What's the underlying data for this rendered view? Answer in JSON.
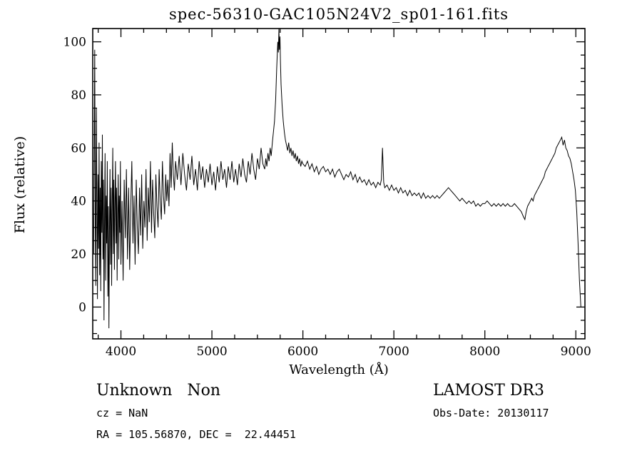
{
  "title": "spec-56310-GAC105N24V2_sp01-161.fits",
  "annotations": {
    "class_label": "Unknown   Non",
    "survey": "LAMOST DR3",
    "cz": "cz = NaN",
    "obs_date": "Obs-Date: 20130117",
    "radec": "RA = 105.56870, DEC =  22.44451"
  },
  "chart_data": {
    "type": "line",
    "title": "spec-56310-GAC105N24V2_sp01-161.fits",
    "xlabel": "Wavelength (Å)",
    "ylabel": "Flux (relative)",
    "xlim": [
      3690,
      9100
    ],
    "ylim": [
      -12,
      105
    ],
    "xticks": [
      4000,
      5000,
      6000,
      7000,
      8000,
      9000
    ],
    "yticks": [
      0,
      20,
      40,
      60,
      80,
      100
    ],
    "x_minor_step": 250,
    "y_minor_step": 5,
    "grid": false,
    "legend": "none",
    "line_color": "#000000",
    "frame_color": "#000000",
    "points": [
      [
        3700,
        20
      ],
      [
        3706,
        55
      ],
      [
        3712,
        97
      ],
      [
        3718,
        30
      ],
      [
        3724,
        8
      ],
      [
        3730,
        75
      ],
      [
        3736,
        40
      ],
      [
        3742,
        3
      ],
      [
        3748,
        50
      ],
      [
        3754,
        22
      ],
      [
        3760,
        62
      ],
      [
        3766,
        12
      ],
      [
        3772,
        45
      ],
      [
        3778,
        6
      ],
      [
        3784,
        55
      ],
      [
        3790,
        28
      ],
      [
        3796,
        65
      ],
      [
        3802,
        18
      ],
      [
        3808,
        48
      ],
      [
        3814,
        -5
      ],
      [
        3820,
        35
      ],
      [
        3826,
        58
      ],
      [
        3832,
        10
      ],
      [
        3838,
        42
      ],
      [
        3844,
        24
      ],
      [
        3850,
        55
      ],
      [
        3856,
        4
      ],
      [
        3862,
        38
      ],
      [
        3868,
        -8
      ],
      [
        3874,
        30
      ],
      [
        3880,
        52
      ],
      [
        3886,
        16
      ],
      [
        3892,
        45
      ],
      [
        3898,
        8
      ],
      [
        3904,
        40
      ],
      [
        3910,
        60
      ],
      [
        3916,
        20
      ],
      [
        3922,
        48
      ],
      [
        3928,
        14
      ],
      [
        3934,
        38
      ],
      [
        3940,
        55
      ],
      [
        3946,
        24
      ],
      [
        3952,
        45
      ],
      [
        3958,
        10
      ],
      [
        3964,
        35
      ],
      [
        3970,
        50
      ],
      [
        3976,
        18
      ],
      [
        3982,
        42
      ],
      [
        3988,
        28
      ],
      [
        3994,
        55
      ],
      [
        4000,
        16
      ],
      [
        4012,
        40
      ],
      [
        4024,
        10
      ],
      [
        4036,
        48
      ],
      [
        4048,
        26
      ],
      [
        4060,
        52
      ],
      [
        4072,
        18
      ],
      [
        4084,
        45
      ],
      [
        4096,
        14
      ],
      [
        4108,
        38
      ],
      [
        4120,
        55
      ],
      [
        4132,
        24
      ],
      [
        4144,
        42
      ],
      [
        4156,
        16
      ],
      [
        4168,
        48
      ],
      [
        4180,
        30
      ],
      [
        4192,
        20
      ],
      [
        4204,
        45
      ],
      [
        4216,
        27
      ],
      [
        4228,
        50
      ],
      [
        4240,
        22
      ],
      [
        4252,
        40
      ],
      [
        4264,
        30
      ],
      [
        4276,
        52
      ],
      [
        4288,
        25
      ],
      [
        4300,
        45
      ],
      [
        4312,
        32
      ],
      [
        4324,
        55
      ],
      [
        4336,
        28
      ],
      [
        4348,
        48
      ],
      [
        4360,
        35
      ],
      [
        4372,
        26
      ],
      [
        4384,
        50
      ],
      [
        4396,
        38
      ],
      [
        4408,
        30
      ],
      [
        4420,
        52
      ],
      [
        4432,
        40
      ],
      [
        4444,
        33
      ],
      [
        4456,
        55
      ],
      [
        4468,
        42
      ],
      [
        4480,
        35
      ],
      [
        4492,
        50
      ],
      [
        4504,
        40
      ],
      [
        4516,
        48
      ],
      [
        4528,
        38
      ],
      [
        4540,
        58
      ],
      [
        4552,
        45
      ],
      [
        4564,
        62
      ],
      [
        4576,
        50
      ],
      [
        4588,
        44
      ],
      [
        4600,
        55
      ],
      [
        4620,
        48
      ],
      [
        4640,
        57
      ],
      [
        4660,
        46
      ],
      [
        4680,
        58
      ],
      [
        4700,
        50
      ],
      [
        4720,
        44
      ],
      [
        4740,
        54
      ],
      [
        4760,
        48
      ],
      [
        4780,
        57
      ],
      [
        4800,
        46
      ],
      [
        4820,
        52
      ],
      [
        4840,
        44
      ],
      [
        4860,
        55
      ],
      [
        4880,
        48
      ],
      [
        4900,
        53
      ],
      [
        4920,
        45
      ],
      [
        4940,
        52
      ],
      [
        4960,
        47
      ],
      [
        4980,
        54
      ],
      [
        5000,
        46
      ],
      [
        5020,
        51
      ],
      [
        5040,
        44
      ],
      [
        5060,
        53
      ],
      [
        5080,
        47
      ],
      [
        5100,
        55
      ],
      [
        5120,
        48
      ],
      [
        5140,
        52
      ],
      [
        5160,
        45
      ],
      [
        5180,
        53
      ],
      [
        5200,
        48
      ],
      [
        5220,
        55
      ],
      [
        5240,
        47
      ],
      [
        5260,
        52
      ],
      [
        5280,
        46
      ],
      [
        5300,
        54
      ],
      [
        5320,
        49
      ],
      [
        5340,
        56
      ],
      [
        5360,
        50
      ],
      [
        5380,
        47
      ],
      [
        5400,
        55
      ],
      [
        5420,
        50
      ],
      [
        5440,
        58
      ],
      [
        5460,
        52
      ],
      [
        5480,
        48
      ],
      [
        5500,
        56
      ],
      [
        5520,
        52
      ],
      [
        5540,
        60
      ],
      [
        5560,
        54
      ],
      [
        5580,
        52
      ],
      [
        5592,
        56
      ],
      [
        5604,
        53
      ],
      [
        5616,
        58
      ],
      [
        5628,
        55
      ],
      [
        5640,
        60
      ],
      [
        5652,
        57
      ],
      [
        5664,
        62
      ],
      [
        5676,
        66
      ],
      [
        5688,
        70
      ],
      [
        5700,
        78
      ],
      [
        5712,
        90
      ],
      [
        5724,
        100
      ],
      [
        5730,
        96
      ],
      [
        5736,
        105
      ],
      [
        5742,
        97
      ],
      [
        5748,
        102
      ],
      [
        5754,
        92
      ],
      [
        5760,
        84
      ],
      [
        5772,
        76
      ],
      [
        5784,
        70
      ],
      [
        5796,
        66
      ],
      [
        5808,
        63
      ],
      [
        5820,
        61
      ],
      [
        5832,
        59
      ],
      [
        5844,
        62
      ],
      [
        5856,
        58
      ],
      [
        5868,
        60
      ],
      [
        5880,
        57
      ],
      [
        5892,
        59
      ],
      [
        5904,
        56
      ],
      [
        5916,
        58
      ],
      [
        5928,
        55
      ],
      [
        5940,
        57
      ],
      [
        5952,
        54
      ],
      [
        5964,
        56
      ],
      [
        5976,
        53
      ],
      [
        5988,
        55
      ],
      [
        6000,
        54
      ],
      [
        6025,
        53
      ],
      [
        6050,
        55
      ],
      [
        6075,
        52
      ],
      [
        6100,
        54
      ],
      [
        6125,
        51
      ],
      [
        6150,
        53
      ],
      [
        6175,
        50
      ],
      [
        6200,
        52
      ],
      [
        6225,
        53
      ],
      [
        6250,
        51
      ],
      [
        6275,
        52
      ],
      [
        6300,
        50
      ],
      [
        6325,
        52
      ],
      [
        6350,
        49
      ],
      [
        6375,
        51
      ],
      [
        6400,
        52
      ],
      [
        6425,
        50
      ],
      [
        6450,
        48
      ],
      [
        6475,
        50
      ],
      [
        6500,
        49
      ],
      [
        6525,
        51
      ],
      [
        6550,
        48
      ],
      [
        6575,
        50
      ],
      [
        6600,
        47
      ],
      [
        6625,
        49
      ],
      [
        6650,
        47
      ],
      [
        6675,
        48
      ],
      [
        6700,
        46
      ],
      [
        6725,
        48
      ],
      [
        6750,
        46
      ],
      [
        6775,
        47
      ],
      [
        6800,
        45
      ],
      [
        6825,
        47
      ],
      [
        6850,
        46
      ],
      [
        6862,
        48
      ],
      [
        6875,
        60
      ],
      [
        6888,
        47
      ],
      [
        6900,
        45
      ],
      [
        6925,
        46
      ],
      [
        6950,
        44
      ],
      [
        6975,
        46
      ],
      [
        7000,
        44
      ],
      [
        7025,
        45
      ],
      [
        7050,
        43
      ],
      [
        7075,
        45
      ],
      [
        7100,
        43
      ],
      [
        7125,
        44
      ],
      [
        7150,
        42
      ],
      [
        7175,
        44
      ],
      [
        7200,
        42
      ],
      [
        7225,
        43
      ],
      [
        7250,
        42
      ],
      [
        7275,
        43
      ],
      [
        7300,
        41
      ],
      [
        7325,
        43
      ],
      [
        7350,
        41
      ],
      [
        7375,
        42
      ],
      [
        7400,
        41
      ],
      [
        7425,
        42
      ],
      [
        7450,
        41
      ],
      [
        7475,
        42
      ],
      [
        7500,
        41
      ],
      [
        7525,
        42
      ],
      [
        7550,
        43
      ],
      [
        7575,
        44
      ],
      [
        7600,
        45
      ],
      [
        7625,
        44
      ],
      [
        7650,
        43
      ],
      [
        7675,
        42
      ],
      [
        7700,
        41
      ],
      [
        7725,
        40
      ],
      [
        7750,
        41
      ],
      [
        7775,
        40
      ],
      [
        7800,
        39
      ],
      [
        7825,
        40
      ],
      [
        7850,
        39
      ],
      [
        7875,
        40
      ],
      [
        7900,
        38
      ],
      [
        7925,
        39
      ],
      [
        7950,
        38
      ],
      [
        7975,
        39
      ],
      [
        8000,
        39
      ],
      [
        8025,
        40
      ],
      [
        8050,
        39
      ],
      [
        8075,
        38
      ],
      [
        8100,
        39
      ],
      [
        8125,
        38
      ],
      [
        8150,
        39
      ],
      [
        8175,
        38
      ],
      [
        8200,
        39
      ],
      [
        8225,
        38
      ],
      [
        8250,
        39
      ],
      [
        8275,
        38
      ],
      [
        8300,
        38
      ],
      [
        8325,
        39
      ],
      [
        8350,
        38
      ],
      [
        8375,
        37
      ],
      [
        8400,
        36
      ],
      [
        8425,
        34
      ],
      [
        8440,
        33
      ],
      [
        8455,
        36
      ],
      [
        8470,
        38
      ],
      [
        8485,
        39
      ],
      [
        8500,
        40
      ],
      [
        8515,
        41
      ],
      [
        8530,
        40
      ],
      [
        8545,
        42
      ],
      [
        8560,
        43
      ],
      [
        8575,
        44
      ],
      [
        8590,
        45
      ],
      [
        8605,
        46
      ],
      [
        8620,
        47
      ],
      [
        8635,
        48
      ],
      [
        8650,
        49
      ],
      [
        8665,
        51
      ],
      [
        8680,
        52
      ],
      [
        8695,
        53
      ],
      [
        8710,
        54
      ],
      [
        8725,
        55
      ],
      [
        8740,
        56
      ],
      [
        8755,
        57
      ],
      [
        8770,
        58
      ],
      [
        8785,
        60
      ],
      [
        8800,
        61
      ],
      [
        8815,
        62
      ],
      [
        8830,
        63
      ],
      [
        8845,
        64
      ],
      [
        8860,
        61
      ],
      [
        8875,
        63
      ],
      [
        8890,
        60
      ],
      [
        8905,
        59
      ],
      [
        8920,
        57
      ],
      [
        8935,
        56
      ],
      [
        8950,
        54
      ],
      [
        8965,
        51
      ],
      [
        8980,
        48
      ],
      [
        8995,
        44
      ],
      [
        9010,
        36
      ],
      [
        9025,
        24
      ],
      [
        9040,
        10
      ],
      [
        9055,
        0
      ]
    ]
  }
}
